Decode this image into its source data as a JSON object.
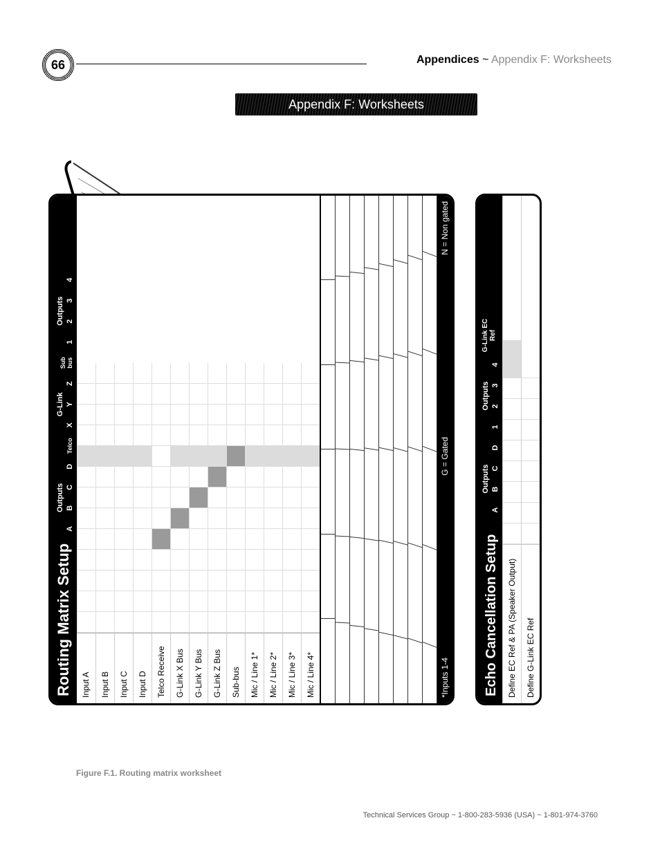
{
  "page_number": "66",
  "breadcrumb_bold": "Appendices",
  "breadcrumb_sep": " ~ ",
  "breadcrumb_light": "Appendix F: Worksheets",
  "banner_title": "Appendix F: Worksheets",
  "matrix": {
    "title": "Routing Matrix Setup",
    "col_groups": [
      {
        "name": "outputs-group-1",
        "label": "Outputs",
        "cols": [
          "A",
          "B",
          "C",
          "D"
        ]
      },
      {
        "name": "telco-group",
        "label": "",
        "cols": [
          "Telco"
        ]
      },
      {
        "name": "glink-group",
        "label": "G-Link",
        "cols": [
          "X",
          "Y",
          "Z"
        ]
      },
      {
        "name": "subbus-group",
        "label": "",
        "cols": [
          "Sub bus"
        ]
      },
      {
        "name": "outputs-group-2",
        "label": "Outputs",
        "cols": [
          "1",
          "2",
          "3",
          "4"
        ]
      }
    ],
    "rows": [
      "Input A",
      "Input B",
      "Input C",
      "Input D",
      "Telco Receive",
      "G-Link X Bus",
      "G-Link Y Bus",
      "G-Link Z Bus",
      "Sub-bus",
      "Mic / Line 1*",
      "Mic / Line 2*",
      "Mic / Line 3*",
      "Mic / Line 4*"
    ],
    "self_block": {
      "map": {
        "4-4": true,
        "5-5": true,
        "6-6": true,
        "7-7": true,
        "8-8": true
      },
      "shade_map": {
        "0-8": true,
        "1-8": true,
        "2-8": true,
        "3-8": true,
        "5-8": true,
        "6-8": true,
        "7-8": true,
        "9-8": true,
        "10-8": true,
        "11-8": true,
        "12-8": true
      }
    },
    "footer": {
      "left": "*Inputs 1-4",
      "mid": "G = Gated",
      "right": "N = Non gated"
    }
  },
  "echo": {
    "title": "Echo Cancellation Setup",
    "groups": [
      {
        "label": "Outputs",
        "cols": [
          "A",
          "B",
          "C",
          "D"
        ]
      },
      {
        "label": "Outputs",
        "cols": [
          "1",
          "2",
          "3",
          "4"
        ]
      }
    ],
    "glink_label": "G-Link EC Ref",
    "rows": [
      {
        "label": "Define EC Ref & PA (Speaker Output)",
        "glink_shade": true
      },
      {
        "label": "Define G-Link EC Ref",
        "glink_shade": false
      }
    ]
  },
  "caption": "Figure F.1.  Routing matrix worksheet",
  "footer": "Technical Services Group ~ 1-800-283-5936 (USA) ~ 1-801-974-3760",
  "colors": {
    "black": "#000000",
    "grey_light": "#dcdcdc",
    "grey_dark": "#9a9a9a",
    "text_muted": "#888888"
  }
}
